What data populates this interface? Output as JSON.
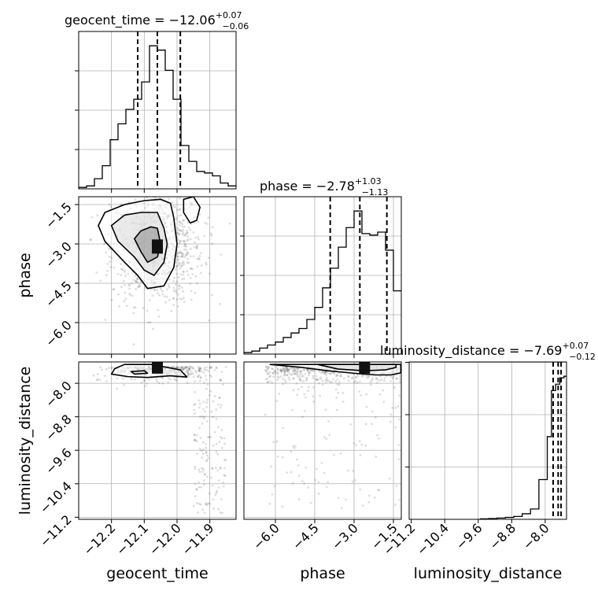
{
  "chart_data": {
    "type": "corner",
    "parameters": [
      {
        "name": "geocent_time",
        "title_prefix": "geocent_time = ",
        "median": "−12.06",
        "plus": "+0.07",
        "minus": "−0.06",
        "quantiles": [
          -12.12,
          -12.06,
          -11.99
        ],
        "range": [
          -12.3,
          -11.82
        ],
        "ticks": [
          -12.2,
          -12.1,
          -12.0,
          -11.9
        ],
        "tick_labels": [
          "−12.2",
          "−12.1",
          "−12.0",
          "−11.9"
        ],
        "hist_bin_edges": [
          -12.3,
          -12.276,
          -12.252,
          -12.228,
          -12.204,
          -12.18,
          -12.156,
          -12.132,
          -12.108,
          -12.084,
          -12.06,
          -12.036,
          -12.012,
          -11.988,
          -11.964,
          -11.94,
          -11.916,
          -11.892,
          -11.868,
          -11.844,
          -11.82
        ],
        "hist_counts": [
          1,
          2,
          7,
          16,
          34,
          45,
          55,
          62,
          74,
          99,
          96,
          82,
          62,
          30,
          19,
          12,
          11,
          9,
          4,
          2
        ]
      },
      {
        "name": "phase",
        "title_prefix": "phase = ",
        "median": "−2.78",
        "plus": "+1.03",
        "minus": "−1.13",
        "quantiles": [
          -3.91,
          -2.78,
          -1.75
        ],
        "range": [
          -7.2,
          -1.2
        ],
        "ticks": [
          -6.0,
          -4.5,
          -3.0,
          -1.5
        ],
        "tick_labels": [
          "−6.0",
          "−4.5",
          "−3.0",
          "−1.5"
        ],
        "hist_bin_edges": [
          -7.2,
          -6.9,
          -6.6,
          -6.3,
          -6.0,
          -5.7,
          -5.4,
          -5.1,
          -4.8,
          -4.5,
          -4.2,
          -3.9,
          -3.6,
          -3.3,
          -3.0,
          -2.7,
          -2.4,
          -2.1,
          -1.8,
          -1.5,
          -1.2
        ],
        "hist_counts": [
          1,
          2,
          4,
          6,
          8,
          11,
          14,
          17,
          23,
          31,
          44,
          57,
          71,
          84,
          95,
          80,
          79,
          81,
          69,
          42
        ]
      },
      {
        "name": "luminosity_distance",
        "title_prefix": "luminosity_distance = ",
        "median": "−7.69",
        "plus": "+0.07",
        "minus": "−0.12",
        "quantiles": [
          -7.81,
          -7.69,
          -7.62
        ],
        "range": [
          -11.25,
          -7.49
        ],
        "ticks": [
          -11.2,
          -10.4,
          -9.6,
          -8.8,
          -8.0
        ],
        "tick_labels": [
          "−11.2",
          "−10.4",
          "−9.6",
          "−8.8",
          "−8.0"
        ],
        "hist_bin_edges": [
          -9.55,
          -9.35,
          -9.15,
          -8.95,
          -8.75,
          -8.55,
          -8.35,
          -8.15,
          -7.95,
          -7.85,
          -7.75,
          -7.65,
          -7.55,
          -7.49
        ],
        "hist_counts": [
          0.3,
          0.5,
          0.8,
          1.2,
          1.8,
          3.5,
          6.5,
          25,
          52,
          81,
          85,
          89,
          90
        ]
      }
    ],
    "xlabels": [
      "geocent_time",
      "phase",
      "luminosity_distance"
    ],
    "ylabels": [
      "",
      "phase",
      "luminosity_distance"
    ],
    "grid": true,
    "panels": [
      {
        "type": "hist",
        "row": 0,
        "col": 0
      },
      {
        "type": "hist",
        "row": 1,
        "col": 1
      },
      {
        "type": "hist",
        "row": 2,
        "col": 2
      },
      {
        "type": "density",
        "row": 1,
        "col": 0,
        "x": "geocent_time",
        "y": "phase",
        "peak": {
          "x": -12.06,
          "y": -3.1
        },
        "contours": [
          [
            [
              -12.05,
              -1.3
            ],
            [
              -12.02,
              -1.45
            ],
            [
              -12.01,
              -2.0
            ],
            [
              -12.0,
              -3.0
            ],
            [
              -12.01,
              -3.9
            ],
            [
              -12.04,
              -4.6
            ],
            [
              -12.09,
              -4.7
            ],
            [
              -12.12,
              -4.2
            ],
            [
              -12.16,
              -3.7
            ],
            [
              -12.22,
              -2.9
            ],
            [
              -12.24,
              -2.3
            ],
            [
              -12.22,
              -1.8
            ],
            [
              -12.16,
              -1.5
            ],
            [
              -12.1,
              -1.35
            ]
          ],
          [
            [
              -12.06,
              -1.8
            ],
            [
              -12.04,
              -2.4
            ],
            [
              -12.03,
              -3.0
            ],
            [
              -12.04,
              -3.7
            ],
            [
              -12.07,
              -4.2
            ],
            [
              -12.1,
              -4.0
            ],
            [
              -12.13,
              -3.5
            ],
            [
              -12.18,
              -2.9
            ],
            [
              -12.2,
              -2.3
            ],
            [
              -12.16,
              -1.9
            ],
            [
              -12.11,
              -1.8
            ]
          ],
          [
            [
              -12.06,
              -2.4
            ],
            [
              -12.05,
              -3.0
            ],
            [
              -12.06,
              -3.5
            ],
            [
              -12.09,
              -3.7
            ],
            [
              -12.11,
              -3.3
            ],
            [
              -12.13,
              -2.8
            ],
            [
              -12.11,
              -2.5
            ],
            [
              -12.08,
              -2.35
            ]
          ],
          [
            [
              -11.98,
              -1.3
            ],
            [
              -11.95,
              -1.2
            ],
            [
              -11.93,
              -1.6
            ],
            [
              -11.94,
              -2.1
            ],
            [
              -11.96,
              -2.2
            ],
            [
              -11.98,
              -1.8
            ]
          ]
        ]
      },
      {
        "type": "density",
        "row": 2,
        "col": 0,
        "x": "geocent_time",
        "y": "luminosity_distance",
        "peak": {
          "x": -12.06,
          "y": -7.6
        },
        "contours": [
          [
            [
              -12.16,
              -7.55
            ],
            [
              -12.08,
              -7.55
            ],
            [
              -12.03,
              -7.62
            ],
            [
              -11.99,
              -7.68
            ],
            [
              -11.97,
              -7.85
            ],
            [
              -12.02,
              -7.82
            ],
            [
              -12.09,
              -7.86
            ],
            [
              -12.15,
              -7.84
            ],
            [
              -12.2,
              -7.78
            ],
            [
              -12.19,
              -7.65
            ]
          ],
          [
            [
              -12.14,
              -7.72
            ],
            [
              -12.1,
              -7.7
            ],
            [
              -12.09,
              -7.76
            ],
            [
              -12.13,
              -7.78
            ]
          ]
        ]
      },
      {
        "type": "density",
        "row": 2,
        "col": 1,
        "x": "phase",
        "y": "luminosity_distance",
        "peak": {
          "x": -2.6,
          "y": -7.6
        },
        "contours": [
          [
            [
              -6.2,
              -7.55
            ],
            [
              -5.0,
              -7.62
            ],
            [
              -4.0,
              -7.7
            ],
            [
              -3.0,
              -7.76
            ],
            [
              -2.2,
              -7.8
            ],
            [
              -1.6,
              -7.8
            ],
            [
              -1.22,
              -7.75
            ],
            [
              -1.22,
              -7.55
            ]
          ],
          [
            [
              -4.4,
              -7.55
            ],
            [
              -3.6,
              -7.66
            ],
            [
              -2.6,
              -7.7
            ],
            [
              -1.8,
              -7.68
            ],
            [
              -1.4,
              -7.62
            ],
            [
              -1.4,
              -7.55
            ]
          ]
        ]
      }
    ]
  }
}
